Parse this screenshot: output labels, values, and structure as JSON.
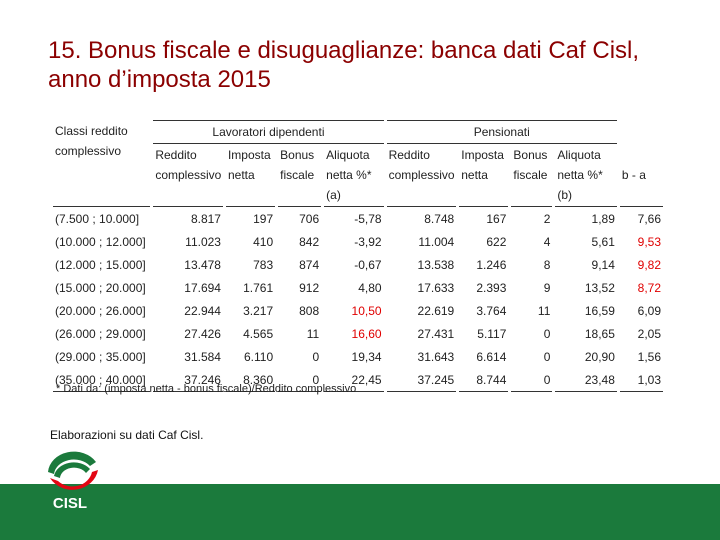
{
  "title": "15. Bonus fiscale e disuguaglianze: banca dati Caf Cisl, anno d’imposta 2015",
  "table": {
    "corner": "Classi reddito complessivo",
    "groups": [
      "Lavoratori dipendenti",
      "Pensionati"
    ],
    "columns": [
      "Reddito complessivo",
      "Imposta netta",
      "Bonus fiscale",
      "Aliquota netta %* (a)",
      "Reddito complessivo",
      "Imposta netta",
      "Bonus fiscale",
      "Aliquota netta %* (b)"
    ],
    "last_column": "b - a",
    "rows": [
      [
        "(7.500 ; 10.000]",
        "8.817",
        "197",
        "706",
        "-5,78",
        "8.748",
        "167",
        "2",
        "1,89",
        "7,66"
      ],
      [
        "(10.000 ; 12.000]",
        "11.023",
        "410",
        "842",
        "-3,92",
        "11.004",
        "622",
        "4",
        "5,61",
        "9,53"
      ],
      [
        "(12.000 ; 15.000]",
        "13.478",
        "783",
        "874",
        "-0,67",
        "13.538",
        "1.246",
        "8",
        "9,14",
        "9,82"
      ],
      [
        "(15.000 ; 20.000]",
        "17.694",
        "1.761",
        "912",
        "4,80",
        "17.633",
        "2.393",
        "9",
        "13,52",
        "8,72"
      ],
      [
        "(20.000 ; 26.000]",
        "22.944",
        "3.217",
        "808",
        "10,50",
        "22.619",
        "3.764",
        "11",
        "16,59",
        "6,09"
      ],
      [
        "(26.000 ; 29.000]",
        "27.426",
        "4.565",
        "11",
        "16,60",
        "27.431",
        "5.117",
        "0",
        "18,65",
        "2,05"
      ],
      [
        "(29.000 ; 35.000]",
        "31.584",
        "6.110",
        "0",
        "19,34",
        "31.643",
        "6.614",
        "0",
        "20,90",
        "1,56"
      ],
      [
        "(35.000 ; 40.000]",
        "37.246",
        "8.360",
        "0",
        "22,45",
        "37.245",
        "8.744",
        "0",
        "23,48",
        "1,03"
      ]
    ],
    "footnote": "* Dati da: (imposta netta - bonus fiscale)/Reddito complessivo"
  },
  "source": "Elaborazioni su dati Caf Cisl.",
  "logo": "CISL"
}
